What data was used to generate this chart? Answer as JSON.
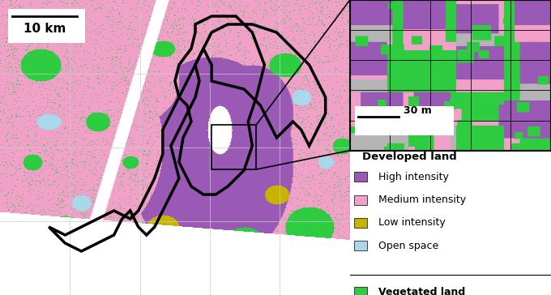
{
  "colors": {
    "high_intensity": "#9B59B6",
    "medium_intensity": "#F1A0C8",
    "low_intensity": "#C8B400",
    "open_space": "#A8D8EA",
    "vegetated": "#2ECC40",
    "water": "#FFFFFF",
    "background": "#FFFFFF",
    "border": "#000000",
    "grid": "#CCCCCC"
  },
  "legend": {
    "title_developed": "Developed land",
    "entries": [
      {
        "label": "High intensity",
        "color": "#9B59B6"
      },
      {
        "label": "Medium intensity",
        "color": "#F1A0C8"
      },
      {
        "label": "Low intensity",
        "color": "#C8B400"
      },
      {
        "label": "Open space",
        "color": "#A8D8EA"
      }
    ],
    "vegetated_label": "Vegetated land",
    "vegetated_color": "#2ECC40"
  },
  "scalebar_main": "10 km",
  "scalebar_inset": "30 m"
}
